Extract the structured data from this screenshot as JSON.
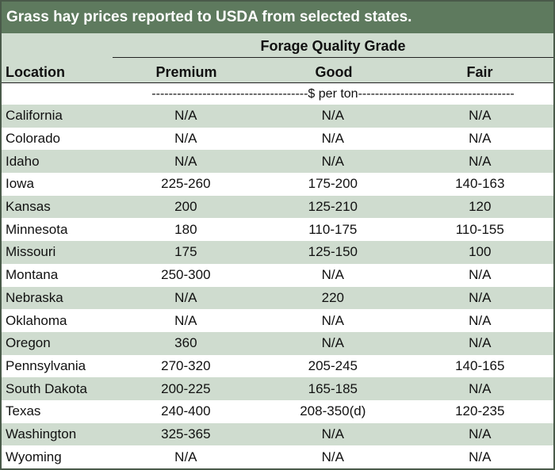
{
  "title": "Grass hay prices reported to USDA from selected states.",
  "group_header": "Forage Quality Grade",
  "columns": {
    "location": "Location",
    "premium": "Premium",
    "good": "Good",
    "fair": "Fair"
  },
  "units": "-------------------------------------$ per ton-------------------------------------",
  "rows": [
    {
      "location": "California",
      "premium": "N/A",
      "good": "N/A",
      "fair": "N/A"
    },
    {
      "location": "Colorado",
      "premium": "N/A",
      "good": "N/A",
      "fair": "N/A"
    },
    {
      "location": "Idaho",
      "premium": "N/A",
      "good": "N/A",
      "fair": "N/A"
    },
    {
      "location": "Iowa",
      "premium": "225-260",
      "good": "175-200",
      "fair": "140-163"
    },
    {
      "location": "Kansas",
      "premium": "200",
      "good": "125-210",
      "fair": "120"
    },
    {
      "location": "Minnesota",
      "premium": "180",
      "good": "110-175",
      "fair": "110-155"
    },
    {
      "location": "Missouri",
      "premium": "175",
      "good": "125-150",
      "fair": "100"
    },
    {
      "location": "Montana",
      "premium": "250-300",
      "good": "N/A",
      "fair": "N/A"
    },
    {
      "location": "Nebraska",
      "premium": "N/A",
      "good": "220",
      "fair": "N/A"
    },
    {
      "location": "Oklahoma",
      "premium": "N/A",
      "good": "N/A",
      "fair": "N/A"
    },
    {
      "location": "Oregon",
      "premium": "360",
      "good": "N/A",
      "fair": "N/A"
    },
    {
      "location": "Pennsylvania",
      "premium": "270-320",
      "good": "205-245",
      "fair": "140-165"
    },
    {
      "location": "South Dakota",
      "premium": "200-225",
      "good": "165-185",
      "fair": "N/A"
    },
    {
      "location": "Texas",
      "premium": "240-400",
      "good": "208-350(d)",
      "fair": "120-235"
    },
    {
      "location": "Washington",
      "premium": "325-365",
      "good": "N/A",
      "fair": "N/A"
    },
    {
      "location": "Wyoming",
      "premium": "N/A",
      "good": "N/A",
      "fair": "N/A"
    }
  ]
}
